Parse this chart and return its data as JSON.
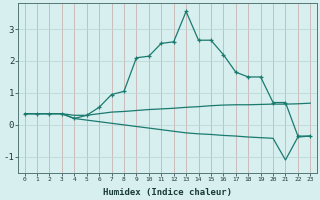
{
  "title": "",
  "xlabel": "Humidex (Indice chaleur)",
  "ylabel": "",
  "bg_color": "#d8efef",
  "grid_color_v": "#c8a8a8",
  "grid_color_h": "#b8d4d4",
  "line_color": "#1a7a6e",
  "ylim": [
    -1.5,
    3.8
  ],
  "xlim": [
    -0.5,
    23.5
  ],
  "yticks": [
    -1,
    0,
    1,
    2,
    3
  ],
  "xticks": [
    0,
    1,
    2,
    3,
    4,
    5,
    6,
    7,
    8,
    9,
    10,
    11,
    12,
    13,
    14,
    15,
    16,
    17,
    18,
    19,
    20,
    21,
    22,
    23
  ],
  "line1_x": [
    0,
    1,
    2,
    3,
    4,
    5,
    6,
    7,
    8,
    9,
    10,
    11,
    12,
    13,
    14,
    15,
    16,
    17,
    18,
    19,
    20,
    21,
    22,
    23
  ],
  "line1_y": [
    0.35,
    0.35,
    0.35,
    0.35,
    0.2,
    0.3,
    0.55,
    0.95,
    1.05,
    2.1,
    2.15,
    2.55,
    2.6,
    3.55,
    2.65,
    2.65,
    2.2,
    1.65,
    1.5,
    1.5,
    0.7,
    0.7,
    -0.35,
    -0.35
  ],
  "line2_x": [
    0,
    1,
    2,
    3,
    4,
    5,
    6,
    7,
    8,
    9,
    10,
    11,
    12,
    13,
    14,
    15,
    16,
    17,
    18,
    19,
    20,
    21,
    22,
    23
  ],
  "line2_y": [
    0.35,
    0.35,
    0.35,
    0.35,
    0.3,
    0.3,
    0.35,
    0.4,
    0.42,
    0.45,
    0.48,
    0.5,
    0.52,
    0.55,
    0.57,
    0.6,
    0.62,
    0.63,
    0.63,
    0.64,
    0.65,
    0.65,
    0.66,
    0.68
  ],
  "line3_x": [
    0,
    1,
    2,
    3,
    4,
    5,
    6,
    7,
    8,
    9,
    10,
    11,
    12,
    13,
    14,
    15,
    16,
    17,
    18,
    19,
    20,
    21,
    22,
    23
  ],
  "line3_y": [
    0.35,
    0.35,
    0.35,
    0.35,
    0.2,
    0.15,
    0.1,
    0.05,
    0.0,
    -0.05,
    -0.1,
    -0.15,
    -0.2,
    -0.25,
    -0.28,
    -0.3,
    -0.33,
    -0.35,
    -0.38,
    -0.4,
    -0.42,
    -1.1,
    -0.38,
    -0.35
  ]
}
